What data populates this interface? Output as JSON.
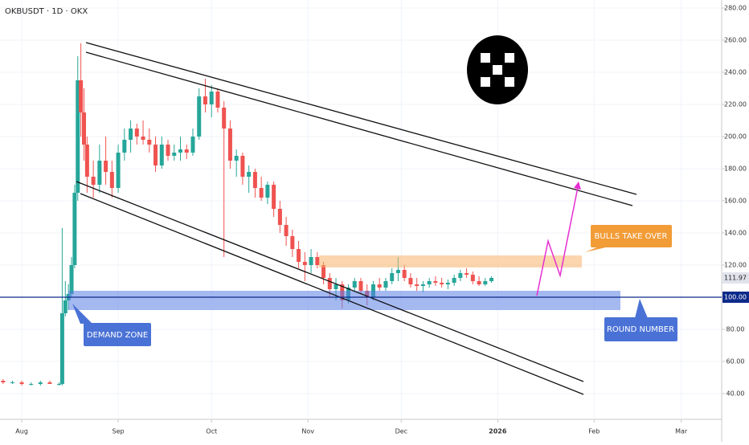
{
  "chart_data": {
    "type": "candlestick",
    "title": "OKBUSDT · 1D · OKX",
    "up_color": "#26a69a",
    "down_color": "#ef5350",
    "xlim": [
      -7,
      225
    ],
    "xticks": [
      {
        "value": 0,
        "label": "Aug"
      },
      {
        "value": 31,
        "label": "Sep"
      },
      {
        "value": 61,
        "label": "Oct"
      },
      {
        "value": 92,
        "label": "Nov"
      },
      {
        "value": 122,
        "label": "Dec"
      },
      {
        "value": 153,
        "label": "2026"
      },
      {
        "value": 184,
        "label": "Feb"
      },
      {
        "value": 212,
        "label": "Mar"
      }
    ],
    "ylim": [
      24,
      285
    ],
    "yticks": [
      {
        "value": 40,
        "label": "40.00"
      },
      {
        "value": 60,
        "label": "60.00"
      },
      {
        "value": 80,
        "label": "80.00"
      },
      {
        "value": 100,
        "label": "100.00"
      },
      {
        "value": 120,
        "label": "120.00"
      },
      {
        "value": 140,
        "label": "140.00"
      },
      {
        "value": 160,
        "label": "160.00"
      },
      {
        "value": 180,
        "label": "180.00"
      },
      {
        "value": 200,
        "label": "200.00"
      },
      {
        "value": 220,
        "label": "220.00"
      },
      {
        "value": 240,
        "label": "240.00"
      },
      {
        "value": 260,
        "label": "260.00"
      },
      {
        "value": 280,
        "label": "280.00"
      }
    ],
    "x": [
      -6,
      -3,
      0,
      3,
      6,
      9,
      12,
      13,
      14,
      15,
      16,
      17,
      18,
      19,
      20,
      21,
      23,
      25,
      27,
      29,
      31,
      33,
      35,
      37,
      39,
      41,
      43,
      45,
      47,
      49,
      51,
      53,
      55,
      57,
      59,
      61,
      63,
      65,
      67,
      69,
      71,
      73,
      75,
      77,
      79,
      81,
      83,
      85,
      87,
      89,
      91,
      93,
      95,
      97,
      99,
      101,
      103,
      105,
      107,
      109,
      111,
      113,
      115,
      117,
      119,
      121,
      123,
      125,
      127,
      129,
      131,
      133,
      135,
      137,
      139,
      141,
      143,
      145,
      147,
      149,
      151
    ],
    "open": [
      48,
      47,
      47,
      46,
      46,
      47,
      46,
      46,
      90,
      98,
      102,
      120,
      165,
      235,
      215,
      195,
      175,
      170,
      185,
      178,
      168,
      190,
      198,
      205,
      200,
      198,
      195,
      182,
      195,
      188,
      190,
      192,
      190,
      200,
      225,
      220,
      228,
      218,
      205,
      185,
      188,
      175,
      178,
      168,
      162,
      170,
      155,
      145,
      138,
      130,
      122,
      120,
      125,
      120,
      112,
      105,
      108,
      98,
      106,
      110,
      104,
      100,
      108,
      106,
      110,
      115,
      117,
      112,
      108,
      107,
      108,
      110,
      109,
      108,
      109,
      112,
      115,
      114,
      110,
      108,
      110
    ],
    "high": [
      49,
      48,
      48,
      47,
      48,
      48,
      47,
      143,
      110,
      108,
      125,
      170,
      250,
      258,
      230,
      200,
      185,
      195,
      200,
      185,
      195,
      205,
      210,
      208,
      210,
      205,
      200,
      200,
      198,
      195,
      200,
      195,
      205,
      230,
      236,
      232,
      230,
      222,
      210,
      192,
      190,
      182,
      180,
      175,
      172,
      172,
      160,
      150,
      142,
      135,
      128,
      130,
      128,
      122,
      115,
      112,
      110,
      108,
      112,
      112,
      108,
      110,
      112,
      112,
      118,
      125,
      120,
      115,
      112,
      110,
      112,
      113,
      112,
      111,
      114,
      117,
      118,
      116,
      113,
      112,
      113
    ],
    "low": [
      46,
      46,
      45,
      45,
      45,
      46,
      45,
      45,
      88,
      92,
      100,
      118,
      160,
      200,
      185,
      165,
      162,
      165,
      170,
      162,
      165,
      185,
      190,
      195,
      195,
      190,
      178,
      180,
      185,
      185,
      185,
      186,
      188,
      198,
      215,
      212,
      215,
      125,
      180,
      175,
      170,
      165,
      162,
      160,
      158,
      150,
      140,
      132,
      125,
      118,
      110,
      115,
      118,
      108,
      100,
      98,
      93,
      96,
      104,
      102,
      95,
      98,
      104,
      104,
      108,
      110,
      110,
      106,
      104,
      103,
      106,
      107,
      106,
      105,
      107,
      110,
      112,
      108,
      107,
      107,
      109
    ],
    "close": [
      47,
      47,
      46,
      46,
      47,
      46,
      46,
      90,
      98,
      102,
      120,
      165,
      235,
      215,
      195,
      175,
      170,
      185,
      178,
      168,
      190,
      198,
      205,
      200,
      198,
      195,
      182,
      195,
      188,
      190,
      192,
      190,
      200,
      225,
      220,
      228,
      218,
      205,
      185,
      188,
      175,
      178,
      168,
      162,
      170,
      155,
      145,
      138,
      130,
      122,
      120,
      125,
      120,
      112,
      105,
      108,
      98,
      106,
      110,
      104,
      100,
      108,
      106,
      110,
      115,
      117,
      112,
      108,
      107,
      108,
      110,
      109,
      108,
      109,
      112,
      115,
      114,
      110,
      108,
      110,
      112
    ],
    "price_line": {
      "value": 100,
      "label": "100.00"
    },
    "last_price": {
      "value": 111.97,
      "label": "111.97"
    },
    "annotations": [
      "DEMAND ZONE",
      "BULLS TAKE OVER",
      "ROUND NUMBER"
    ]
  }
}
